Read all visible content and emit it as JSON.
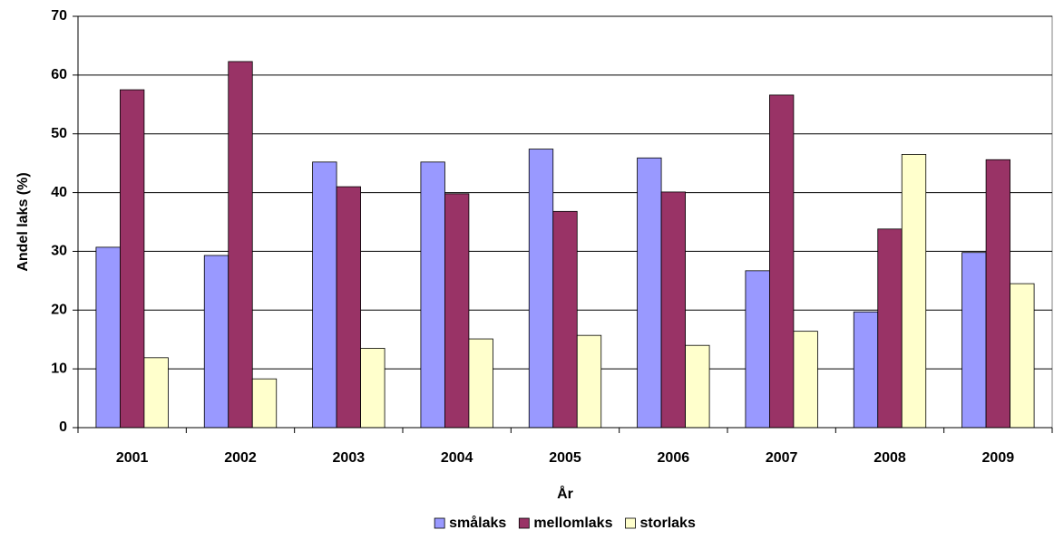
{
  "chart_data": {
    "type": "bar",
    "xlabel": "År",
    "ylabel": "Andel laks (%)",
    "categories": [
      "2001",
      "2002",
      "2003",
      "2004",
      "2005",
      "2006",
      "2007",
      "2008",
      "2009"
    ],
    "series": [
      {
        "name": "smålaks",
        "color": "#9999ff",
        "values": [
          30.7,
          29.3,
          45.2,
          45.2,
          47.4,
          45.9,
          26.7,
          19.7,
          29.8
        ]
      },
      {
        "name": "mellomlaks",
        "color": "#993366",
        "values": [
          57.5,
          62.3,
          41.0,
          39.8,
          36.8,
          40.1,
          56.6,
          33.8,
          45.6
        ]
      },
      {
        "name": "storlaks",
        "color": "#ffffcc",
        "values": [
          11.9,
          8.3,
          13.5,
          15.1,
          15.7,
          14.0,
          16.4,
          46.5,
          24.5
        ]
      }
    ],
    "ylim": [
      0,
      70
    ],
    "yticks": [
      0,
      10,
      20,
      30,
      40,
      50,
      60,
      70
    ],
    "grid": true,
    "legend": "bottom"
  }
}
